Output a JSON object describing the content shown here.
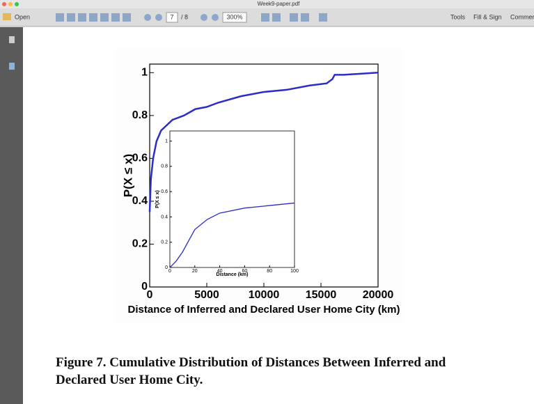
{
  "window": {
    "title": "Week9-paper.pdf"
  },
  "toolbar": {
    "open": "Open",
    "page": "7",
    "page_count": "/ 8",
    "zoom": "300%",
    "tools": "Tools",
    "fill_sign": "Fill & Sign",
    "comment": "Commen"
  },
  "chart_data": [
    {
      "type": "line",
      "x_label": "Distance of Inferred and Declared User Home City (km)",
      "y_label": "P(X ≤ x)",
      "x": [
        0,
        100,
        300,
        600,
        1000,
        2000,
        3000,
        4000,
        5000,
        6000,
        8000,
        10000,
        12000,
        14000,
        15500,
        16000,
        16200,
        17000,
        20000
      ],
      "series": [
        {
          "color": "#2c2cc8",
          "values": [
            0.35,
            0.5,
            0.6,
            0.68,
            0.73,
            0.78,
            0.8,
            0.83,
            0.84,
            0.86,
            0.89,
            0.91,
            0.92,
            0.94,
            0.95,
            0.97,
            0.99,
            0.99,
            1.0
          ]
        }
      ],
      "xlim": [
        0,
        20000
      ],
      "ylim": [
        0,
        1.04
      ],
      "xticks": [
        0,
        5000,
        10000,
        15000,
        20000
      ],
      "yticks": [
        0,
        0.2,
        0.4,
        0.6,
        0.8,
        1
      ]
    },
    {
      "type": "line",
      "x_label": "Distance (km)",
      "y_label": "P(X ≤ x)",
      "x": [
        0,
        5,
        10,
        20,
        30,
        40,
        60,
        80,
        100
      ],
      "series": [
        {
          "color": "#2c2cc8",
          "values": [
            0.0,
            0.05,
            0.12,
            0.3,
            0.38,
            0.43,
            0.47,
            0.49,
            0.51
          ]
        }
      ],
      "xlim": [
        0,
        100
      ],
      "ylim": [
        0,
        1.08
      ],
      "xticks": [
        0,
        20,
        40,
        60,
        80,
        100
      ],
      "yticks": [
        0,
        0.2,
        0.4,
        0.6,
        0.8,
        1
      ]
    }
  ],
  "caption": "Figure 7.  Cumulative Distribution of Distances Between Inferred and Declared User Home City."
}
